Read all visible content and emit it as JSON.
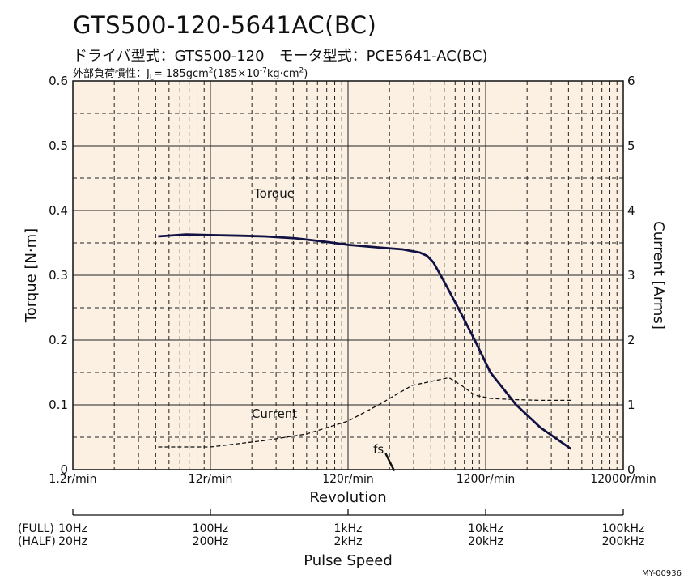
{
  "header": {
    "title": "GTS500-120-5641AC(BC)",
    "subtitle": "ドライバ型式：GTS500-120　モータ型式：PCE5641-AC(BC)",
    "inertia_prefix": "外部負荷慣性：J",
    "inertia_sub": "L",
    "inertia_mid": "= 185gcm",
    "inertia_sup": "2",
    "inertia_rest": "(185×10",
    "inertia_exp": "-7",
    "inertia_unit": "kg·cm",
    "inertia_unit_sup": "2",
    "inertia_close": ")"
  },
  "footer": {
    "code": "MY-00936"
  },
  "colors": {
    "plot_bg": "#fbf0e2",
    "torque_line": "#111144",
    "grid": "#222222"
  },
  "chart_data": {
    "type": "line",
    "x_scale": "log",
    "xlim": [
      1.2,
      12000
    ],
    "xlabel": "Revolution",
    "x_ticks": [
      {
        "value": 1.2,
        "label": "1.2r/min"
      },
      {
        "value": 12,
        "label": "12r/min"
      },
      {
        "value": 120,
        "label": "120r/min"
      },
      {
        "value": 1200,
        "label": "1200r/min"
      },
      {
        "value": 12000,
        "label": "12000r/min"
      }
    ],
    "ylabel": "Torque [N·m]",
    "ylim": [
      0,
      0.6
    ],
    "y_ticks": [
      "0",
      "0.1",
      "0.2",
      "0.3",
      "0.4",
      "0.5",
      "0.6"
    ],
    "y2label": "Current [Arms]",
    "y2lim": [
      0,
      6
    ],
    "y2_ticks": [
      "0",
      "1",
      "2",
      "3",
      "4",
      "5",
      "6"
    ],
    "grid": true,
    "series": [
      {
        "name": "Torque",
        "axis": "left",
        "points": [
          [
            5,
            0.36
          ],
          [
            8,
            0.363
          ],
          [
            12,
            0.362
          ],
          [
            20,
            0.361
          ],
          [
            30,
            0.36
          ],
          [
            50,
            0.357
          ],
          [
            80,
            0.352
          ],
          [
            120,
            0.347
          ],
          [
            200,
            0.343
          ],
          [
            300,
            0.34
          ],
          [
            400,
            0.335
          ],
          [
            450,
            0.33
          ],
          [
            500,
            0.32
          ],
          [
            600,
            0.29
          ],
          [
            800,
            0.24
          ],
          [
            1000,
            0.2
          ],
          [
            1300,
            0.15
          ],
          [
            2000,
            0.1
          ],
          [
            3000,
            0.065
          ],
          [
            5000,
            0.032
          ]
        ]
      },
      {
        "name": "Current",
        "axis": "right",
        "points": [
          [
            5,
            0.35
          ],
          [
            12,
            0.35
          ],
          [
            30,
            0.45
          ],
          [
            60,
            0.55
          ],
          [
            120,
            0.75
          ],
          [
            200,
            1.0
          ],
          [
            350,
            1.3
          ],
          [
            650,
            1.42
          ],
          [
            800,
            1.3
          ],
          [
            1000,
            1.15
          ],
          [
            1300,
            1.1
          ],
          [
            2000,
            1.08
          ],
          [
            3000,
            1.07
          ],
          [
            5000,
            1.07
          ]
        ]
      }
    ],
    "annotations": [
      {
        "text": "Torque",
        "x": 35,
        "y": 0.42
      },
      {
        "text": "Current",
        "x": 35,
        "y": 0.08
      },
      {
        "text": "fs",
        "x": 200,
        "y": 0.025
      }
    ],
    "fs_marker": {
      "x_from": 225,
      "y_from": 0.025,
      "x_to": 260,
      "y_to": -0.002
    },
    "pulse_axis": {
      "label": "Pulse Speed",
      "full_label": "(FULL)",
      "half_label": "(HALF)",
      "ticks": [
        {
          "value": 1.2,
          "full": "10Hz",
          "half": "20Hz"
        },
        {
          "value": 12,
          "full": "100Hz",
          "half": "200Hz"
        },
        {
          "value": 120,
          "full": "1kHz",
          "half": "2kHz"
        },
        {
          "value": 1200,
          "full": "10kHz",
          "half": "20kHz"
        },
        {
          "value": 12000,
          "full": "100kHz",
          "half": "200kHz"
        }
      ]
    }
  }
}
